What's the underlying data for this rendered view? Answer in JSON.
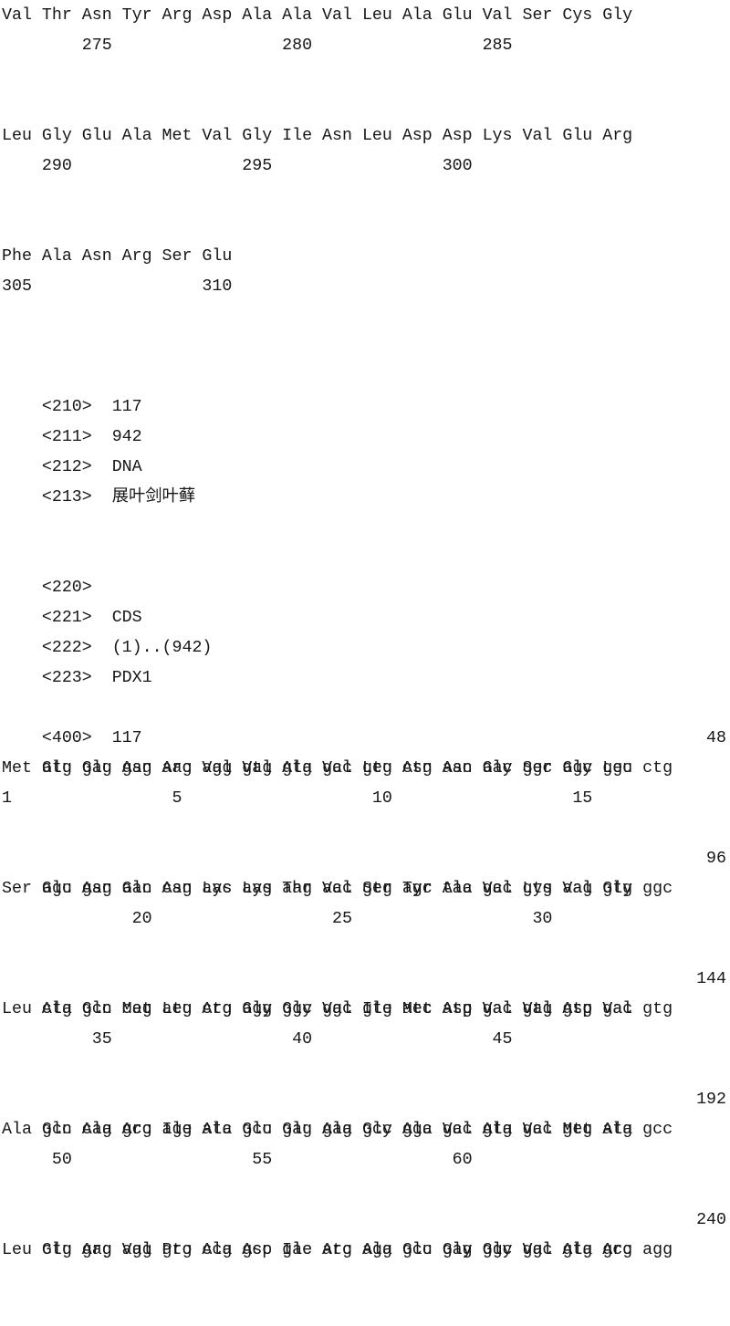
{
  "document_type": "patent-sequence-listing-page",
  "protein": {
    "rows": [
      {
        "seq": "Val Thr Asn Tyr Arg Asp Ala Ala Val Leu Ala Glu Val Ser Cys Gly",
        "nums": "        275                 280                 285"
      },
      {
        "seq": "Leu Gly Glu Ala Met Val Gly Ile Asn Leu Asp Asp Lys Val Glu Arg",
        "nums": "    290                 295                 300"
      },
      {
        "seq": "Phe Ala Asn Arg Ser Glu",
        "nums": "305                 310"
      }
    ]
  },
  "seq_header": {
    "rows": [
      {
        "tag": "<210>",
        "value": "117"
      },
      {
        "tag": "<211>",
        "value": "942"
      },
      {
        "tag": "<212>",
        "value": "DNA"
      },
      {
        "tag": "<213>",
        "value": "展叶剑叶藓"
      }
    ]
  },
  "feature_header": {
    "rows": [
      {
        "tag": "<220>",
        "value": ""
      },
      {
        "tag": "<221>",
        "value": "CDS"
      },
      {
        "tag": "<222>",
        "value": "(1)..(942)"
      },
      {
        "tag": "<223>",
        "value": "PDX1"
      }
    ]
  },
  "seq_start": {
    "tag": "<400>",
    "value": "117"
  },
  "dna": {
    "blocks": [
      {
        "codons": "atg gag gag aac agg gtg gtg gcc gtg ctg aac aac ggc agc ggc ctg",
        "total": "48",
        "aa": "Met Glu Glu Asn Arg Val Val Ala Val Leu Asn Asn Gly Ser Gly Leu",
        "nums": "1                5                   10                  15"
      },
      {
        "codons": "agc gag aac cag aac aag aag acc gtg agc tac gcc gtg aag gtg ggc",
        "total": "96",
        "aa": "Ser Glu Asn Gln Asn Lys Lys Thr Val Ser Tyr Ala Val Lys Val Gly",
        "nums": "             20                  25                  30"
      },
      {
        "codons": "ctg gcc cag atg ctg agg ggc ggc gtg atc atg gac gtg gtg gac gtg",
        "total": "144",
        "aa": "Leu Ala Gln Met Leu Arg Gly Gly Val Ile Met Asp Val Val Asp Val",
        "nums": "         35                  40                  45"
      },
      {
        "codons": "gcc cag gcc agg atc gcc gag gag gcc ggc gcc gtg gcc gtg atg gcc",
        "total": "192",
        "aa": "Ala Gln Ala Arg Ile Ala Glu Glu Ala Gly Ala Val Ala Val Met Ala",
        "nums": "     50                  55                  60"
      },
      {
        "codons": "ctg gag agg gtg ccg gcc gac atc agg gcc gag ggc ggc gtg gcc agg",
        "total": "240",
        "aa": "Leu Glu Arg Val Pro Ala Asp Ile Arg Ala Glu Gly Gly Val Ala Arg",
        "nums": ""
      }
    ]
  }
}
